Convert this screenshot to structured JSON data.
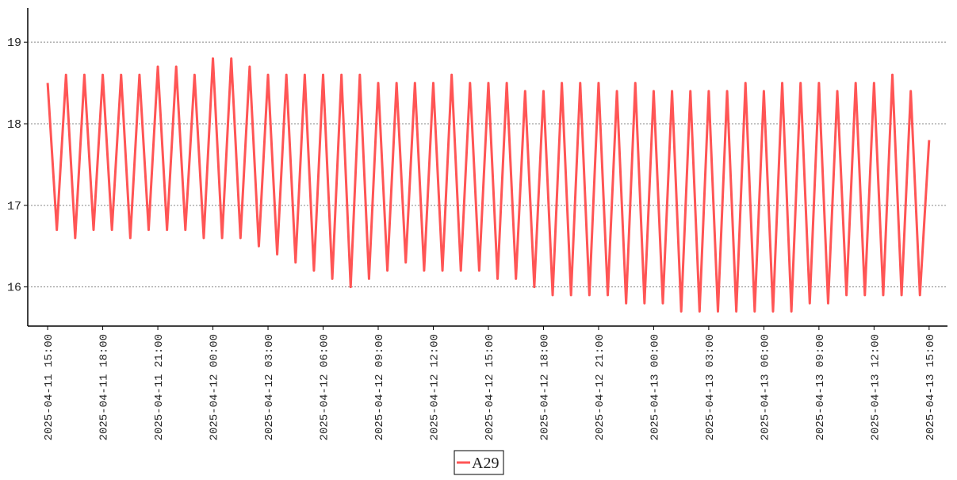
{
  "chart_data": {
    "type": "line",
    "x": [
      "2025-04-11 15:00",
      "2025-04-11 15:30",
      "2025-04-11 16:00",
      "2025-04-11 16:30",
      "2025-04-11 17:00",
      "2025-04-11 17:30",
      "2025-04-11 18:00",
      "2025-04-11 18:30",
      "2025-04-11 19:00",
      "2025-04-11 19:30",
      "2025-04-11 20:00",
      "2025-04-11 20:30",
      "2025-04-11 21:00",
      "2025-04-11 21:30",
      "2025-04-11 22:00",
      "2025-04-11 22:30",
      "2025-04-11 23:00",
      "2025-04-11 23:30",
      "2025-04-12 00:00",
      "2025-04-12 00:30",
      "2025-04-12 01:00",
      "2025-04-12 01:30",
      "2025-04-12 02:00",
      "2025-04-12 02:30",
      "2025-04-12 03:00",
      "2025-04-12 03:30",
      "2025-04-12 04:00",
      "2025-04-12 04:30",
      "2025-04-12 05:00",
      "2025-04-12 05:30",
      "2025-04-12 06:00",
      "2025-04-12 06:30",
      "2025-04-12 07:00",
      "2025-04-12 07:30",
      "2025-04-12 08:00",
      "2025-04-12 08:30",
      "2025-04-12 09:00",
      "2025-04-12 09:30",
      "2025-04-12 10:00",
      "2025-04-12 10:30",
      "2025-04-12 11:00",
      "2025-04-12 11:30",
      "2025-04-12 12:00",
      "2025-04-12 12:30",
      "2025-04-12 13:00",
      "2025-04-12 13:30",
      "2025-04-12 14:00",
      "2025-04-12 14:30",
      "2025-04-12 15:00",
      "2025-04-12 15:30",
      "2025-04-12 16:00",
      "2025-04-12 16:30",
      "2025-04-12 17:00",
      "2025-04-12 17:30",
      "2025-04-12 18:00",
      "2025-04-12 18:30",
      "2025-04-12 19:00",
      "2025-04-12 19:30",
      "2025-04-12 20:00",
      "2025-04-12 20:30",
      "2025-04-12 21:00",
      "2025-04-12 21:30",
      "2025-04-12 22:00",
      "2025-04-12 22:30",
      "2025-04-12 23:00",
      "2025-04-12 23:30",
      "2025-04-13 00:00",
      "2025-04-13 00:30",
      "2025-04-13 01:00",
      "2025-04-13 01:30",
      "2025-04-13 02:00",
      "2025-04-13 02:30",
      "2025-04-13 03:00",
      "2025-04-13 03:30",
      "2025-04-13 04:00",
      "2025-04-13 04:30",
      "2025-04-13 05:00",
      "2025-04-13 05:30",
      "2025-04-13 06:00",
      "2025-04-13 06:30",
      "2025-04-13 07:00",
      "2025-04-13 07:30",
      "2025-04-13 08:00",
      "2025-04-13 08:30",
      "2025-04-13 09:00",
      "2025-04-13 09:30",
      "2025-04-13 10:00",
      "2025-04-13 10:30",
      "2025-04-13 11:00",
      "2025-04-13 11:30",
      "2025-04-13 12:00",
      "2025-04-13 12:30",
      "2025-04-13 13:00",
      "2025-04-13 13:30",
      "2025-04-13 14:00",
      "2025-04-13 14:30",
      "2025-04-13 15:00"
    ],
    "series": [
      {
        "name": "A29",
        "color": "#ff5555",
        "values": [
          18.5,
          16.7,
          18.6,
          16.6,
          18.6,
          16.7,
          18.6,
          16.7,
          18.6,
          16.6,
          18.6,
          16.7,
          18.7,
          16.7,
          18.7,
          16.7,
          18.6,
          16.6,
          18.8,
          16.6,
          18.8,
          16.6,
          18.7,
          16.5,
          18.6,
          16.4,
          18.6,
          16.3,
          18.6,
          16.2,
          18.6,
          16.1,
          18.6,
          16.0,
          18.6,
          16.1,
          18.5,
          16.2,
          18.5,
          16.3,
          18.5,
          16.2,
          18.5,
          16.2,
          18.6,
          16.2,
          18.5,
          16.2,
          18.5,
          16.1,
          18.5,
          16.1,
          18.4,
          16.0,
          18.4,
          15.9,
          18.5,
          15.9,
          18.5,
          15.9,
          18.5,
          15.9,
          18.4,
          15.8,
          18.5,
          15.8,
          18.4,
          15.8,
          18.4,
          15.7,
          18.4,
          15.7,
          18.4,
          15.7,
          18.4,
          15.7,
          18.5,
          15.7,
          18.4,
          15.7,
          18.5,
          15.7,
          18.5,
          15.8,
          18.5,
          15.8,
          18.4,
          15.9,
          18.5,
          15.9,
          18.5,
          15.9,
          18.6,
          15.9,
          18.4,
          15.9,
          17.8
        ]
      }
    ],
    "xlim": [
      "2025-04-11 13:55",
      "2025-04-13 16:00"
    ],
    "xticks": [
      "2025-04-11 15:00",
      "2025-04-11 18:00",
      "2025-04-11 21:00",
      "2025-04-12 00:00",
      "2025-04-12 03:00",
      "2025-04-12 06:00",
      "2025-04-12 09:00",
      "2025-04-12 12:00",
      "2025-04-12 15:00",
      "2025-04-12 18:00",
      "2025-04-12 21:00",
      "2025-04-13 00:00",
      "2025-04-13 03:00",
      "2025-04-13 06:00",
      "2025-04-13 09:00",
      "2025-04-13 12:00",
      "2025-04-13 15:00"
    ],
    "ylim": [
      15.52,
      19.42
    ],
    "yticks": [
      16,
      17,
      18,
      19
    ],
    "grid": true,
    "legend": "bottom"
  }
}
